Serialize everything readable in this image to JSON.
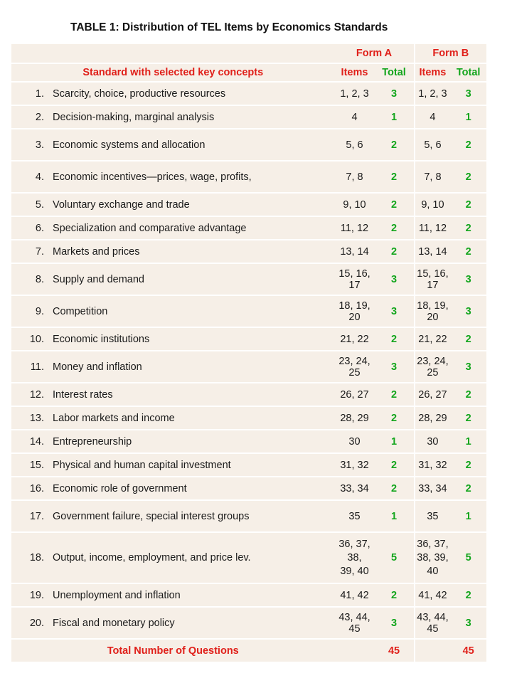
{
  "title": "TABLE 1: Distribution of TEL Items by Economics Standards",
  "header": {
    "form_a": "Form A",
    "form_b": "Form B",
    "standard_col": "Standard with selected key concepts",
    "items_a": "Items",
    "total_a": "Total",
    "items_b": "Items",
    "total_b": "Total"
  },
  "rows": [
    {
      "num": "1.",
      "standard": "Scarcity, choice, productive resources",
      "items_a": "1, 2, 3",
      "total_a": "3",
      "items_b": "1, 2, 3",
      "total_b": "3"
    },
    {
      "num": "2.",
      "standard": "Decision-making, marginal analysis",
      "items_a": "4",
      "total_a": "1",
      "items_b": "4",
      "total_b": "1"
    },
    {
      "num": "3.",
      "standard": "Economic systems and allocation",
      "items_a": "5, 6",
      "total_a": "2",
      "items_b": "5, 6",
      "total_b": "2"
    },
    {
      "num": "4.",
      "standard": "Economic incentives—prices, wage, profits,",
      "items_a": "7, 8",
      "total_a": "2",
      "items_b": "7, 8",
      "total_b": "2"
    },
    {
      "num": "5.",
      "standard": "Voluntary exchange and trade",
      "items_a": "9, 10",
      "total_a": "2",
      "items_b": "9, 10",
      "total_b": "2"
    },
    {
      "num": "6.",
      "standard": "Specialization and comparative advantage",
      "items_a": "11, 12",
      "total_a": "2",
      "items_b": "11, 12",
      "total_b": "2"
    },
    {
      "num": "7.",
      "standard": "Markets and prices",
      "items_a": "13, 14",
      "total_a": "2",
      "items_b": "13, 14",
      "total_b": "2"
    },
    {
      "num": "8.",
      "standard": "Supply and demand",
      "items_a": "15, 16, 17",
      "total_a": "3",
      "items_b": "15, 16, 17",
      "total_b": "3"
    },
    {
      "num": "9.",
      "standard": "Competition",
      "items_a": "18, 19, 20",
      "total_a": "3",
      "items_b": "18, 19, 20",
      "total_b": "3"
    },
    {
      "num": "10.",
      "standard": "Economic institutions",
      "items_a": "21, 22",
      "total_a": "2",
      "items_b": "21, 22",
      "total_b": "2"
    },
    {
      "num": "11.",
      "standard": "Money and inflation",
      "items_a": "23, 24, 25",
      "total_a": "3",
      "items_b": "23, 24, 25",
      "total_b": "3"
    },
    {
      "num": "12.",
      "standard": "Interest rates",
      "items_a": "26, 27",
      "total_a": "2",
      "items_b": "26, 27",
      "total_b": "2"
    },
    {
      "num": "13.",
      "standard": "Labor markets and income",
      "items_a": "28, 29",
      "total_a": "2",
      "items_b": "28, 29",
      "total_b": "2"
    },
    {
      "num": "14.",
      "standard": "Entrepreneurship",
      "items_a": "30",
      "total_a": "1",
      "items_b": "30",
      "total_b": "1"
    },
    {
      "num": "15.",
      "standard": "Physical and human capital investment",
      "items_a": "31, 32",
      "total_a": "2",
      "items_b": "31, 32",
      "total_b": "2"
    },
    {
      "num": "16.",
      "standard": "Economic role of government",
      "items_a": "33, 34",
      "total_a": "2",
      "items_b": "33, 34",
      "total_b": "2"
    },
    {
      "num": "17.",
      "standard": "Government failure, special interest groups",
      "items_a": "35",
      "total_a": "1",
      "items_b": "35",
      "total_b": "1"
    },
    {
      "num": "18.",
      "standard": "Output, income, employment, and price lev.",
      "items_a_line1": "36, 37, 38,",
      "items_a_line2": "39, 40",
      "total_a": "5",
      "items_b_line1": "36, 37,",
      "items_b_line2": "38, 39, 40",
      "total_b": "5"
    },
    {
      "num": "19.",
      "standard": "Unemployment and inflation",
      "items_a": "41, 42",
      "total_a": "2",
      "items_b": "41, 42",
      "total_b": "2"
    },
    {
      "num": "20.",
      "standard": "Fiscal and monetary policy",
      "items_a": "43, 44, 45",
      "total_a": "3",
      "items_b": "43, 44, 45",
      "total_b": "3"
    }
  ],
  "footer": {
    "label": "Total Number of Questions",
    "total_a": "45",
    "total_b": "45"
  },
  "colors": {
    "header_red": "#e0201a",
    "total_green": "#12a51c",
    "cell_background": "#f6efe7"
  }
}
